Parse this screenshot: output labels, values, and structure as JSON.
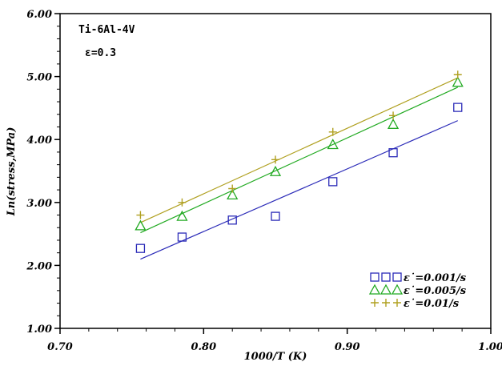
{
  "chart_data": {
    "type": "scatter",
    "xlabel": "1000/T (K)",
    "ylabel": "Ln(stress,MPa)",
    "xlim": [
      0.7,
      1.0
    ],
    "ylim": [
      1.0,
      6.0
    ],
    "xticks": [
      "0.70",
      "0.80",
      "0.90",
      "1.00"
    ],
    "yticks": [
      "1.00",
      "2.00",
      "3.00",
      "4.00",
      "5.00",
      "6.00"
    ],
    "annotations": [
      "Ti-6Al-4V",
      "ε=0.3"
    ],
    "legend_position": "bottom-right",
    "grid": false,
    "series": [
      {
        "name": "ε˙=0.001/s",
        "marker": "square",
        "color": "#2b2bb8",
        "points": [
          [
            0.756,
            2.27
          ],
          [
            0.785,
            2.45
          ],
          [
            0.82,
            2.72
          ],
          [
            0.85,
            2.78
          ],
          [
            0.89,
            3.33
          ],
          [
            0.932,
            3.79
          ],
          [
            0.977,
            4.51
          ]
        ],
        "fit": [
          [
            0.756,
            2.1
          ],
          [
            0.977,
            4.3
          ]
        ]
      },
      {
        "name": "ε˙=0.005/s",
        "marker": "triangle",
        "color": "#22aa22",
        "points": [
          [
            0.756,
            2.63
          ],
          [
            0.785,
            2.78
          ],
          [
            0.82,
            3.12
          ],
          [
            0.85,
            3.49
          ],
          [
            0.89,
            3.92
          ],
          [
            0.932,
            4.24
          ],
          [
            0.977,
            4.91
          ]
        ],
        "fit": [
          [
            0.756,
            2.52
          ],
          [
            0.977,
            4.83
          ]
        ]
      },
      {
        "name": "ε˙=0.01/s",
        "marker": "plus",
        "color": "#b0a020",
        "points": [
          [
            0.756,
            2.8
          ],
          [
            0.785,
            3.0
          ],
          [
            0.82,
            3.22
          ],
          [
            0.85,
            3.68
          ],
          [
            0.89,
            4.12
          ],
          [
            0.932,
            4.38
          ],
          [
            0.977,
            5.03
          ]
        ],
        "fit": [
          [
            0.756,
            2.68
          ],
          [
            0.977,
            4.98
          ]
        ]
      }
    ]
  }
}
